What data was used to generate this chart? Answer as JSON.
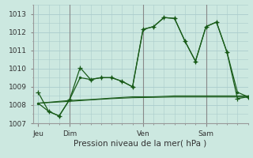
{
  "bg_color": "#cce8e0",
  "grid_color": "#aacccc",
  "line_color": "#1a5c1a",
  "title": "Pression niveau de la mer( hPa )",
  "ylim": [
    1007,
    1013.5
  ],
  "yticks": [
    1007,
    1008,
    1009,
    1010,
    1011,
    1012,
    1013
  ],
  "day_ticks": [
    "Jeu",
    "Dim",
    "Ven",
    "Sam"
  ],
  "day_positions": [
    0,
    3,
    10,
    16
  ],
  "xlim": [
    -0.5,
    20
  ],
  "vlines": [
    3,
    10,
    16
  ],
  "series1_x": [
    0,
    1,
    2,
    3,
    4,
    5,
    6,
    7,
    8,
    9,
    10,
    11,
    12,
    13,
    14,
    15,
    16,
    17,
    18,
    19,
    20
  ],
  "series1_y": [
    1008.7,
    1007.65,
    1007.4,
    1008.3,
    1010.05,
    1009.4,
    1009.5,
    1009.5,
    1009.3,
    1009.0,
    1012.15,
    1012.3,
    1012.8,
    1012.75,
    1011.5,
    1010.4,
    1012.3,
    1012.55,
    1010.9,
    1008.35,
    1008.45
  ],
  "series2_x": [
    0,
    1,
    2,
    3,
    4,
    5,
    6,
    7,
    8,
    9,
    10,
    11,
    12,
    13,
    14,
    15,
    16,
    17,
    18,
    19,
    20
  ],
  "series2_y": [
    1008.1,
    1007.65,
    1007.4,
    1008.3,
    1009.5,
    1009.4,
    1009.5,
    1009.5,
    1009.3,
    1009.0,
    1012.15,
    1012.3,
    1012.8,
    1012.75,
    1011.5,
    1010.4,
    1012.3,
    1012.55,
    1010.9,
    1008.7,
    1008.45
  ],
  "series3_x": [
    0,
    3,
    5,
    7,
    9,
    11,
    13,
    15,
    16,
    17,
    18,
    19,
    20
  ],
  "series3_y": [
    1008.1,
    1008.25,
    1008.3,
    1008.38,
    1008.45,
    1008.45,
    1008.5,
    1008.5,
    1008.5,
    1008.5,
    1008.5,
    1008.5,
    1008.5
  ],
  "series4_x": [
    0,
    3,
    5,
    7,
    9,
    11,
    13,
    15,
    16,
    18,
    20
  ],
  "series4_y": [
    1008.1,
    1008.2,
    1008.28,
    1008.35,
    1008.4,
    1008.42,
    1008.44,
    1008.44,
    1008.44,
    1008.44,
    1008.44
  ]
}
